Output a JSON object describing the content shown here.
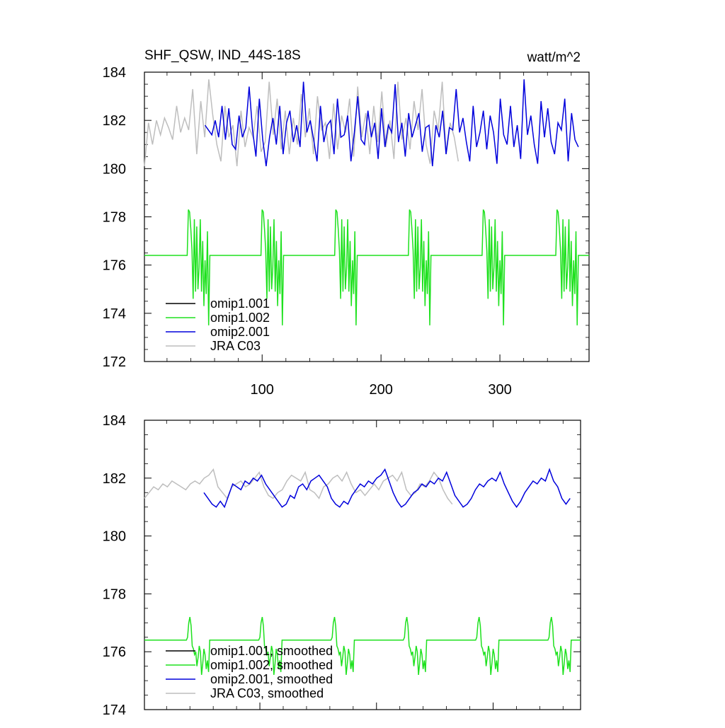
{
  "header": {
    "title": "SHF_QSW, IND_44S-18S",
    "units": "watt/m^2"
  },
  "colors": {
    "omip1_001": "#000000",
    "omip1_002": "#1ee11e",
    "omip2_001": "#0000dc",
    "jra_c03": "#bebebe"
  },
  "chart_data": [
    {
      "type": "line",
      "xlim": [
        1,
        375
      ],
      "ylim": [
        172,
        184
      ],
      "xticks": [
        100,
        200,
        300
      ],
      "yticks": [
        172,
        174,
        176,
        178,
        180,
        182,
        184
      ],
      "legend_position": "lower-left",
      "legend": [
        "omip1.001",
        "omip1.002",
        "omip2.001",
        "JRA C03"
      ],
      "series": [
        {
          "name": "omip1.001",
          "color": "#000000",
          "values": [],
          "note_hidden_by_omip1_002": true
        },
        {
          "name": "omip1.002",
          "color": "#1ee11e",
          "pattern": {
            "period": 62,
            "start": 1,
            "end": 375,
            "baseline": 176.4,
            "active_values": [
              178.3,
              178.2,
              177.5,
              176.6,
              174.6,
              177.9,
              174.9,
              177.6,
              175.0,
              175.9,
              177.9,
              174.9,
              177.0,
              174.3,
              176.2,
              174.8,
              177.4,
              173.5,
              176.4
            ]
          }
        },
        {
          "name": "omip2.001",
          "color": "#0000dc",
          "values": [
            181.8,
            181.6,
            181.4,
            182.0,
            181.3,
            182.6,
            181.2,
            182.5,
            181.0,
            180.8,
            182.2,
            181.3,
            181.7,
            183.4,
            181.6,
            180.5,
            182.9,
            181.2,
            180.1,
            181.3,
            182.1,
            181.0,
            182.6,
            180.6,
            181.9,
            182.4,
            181.1,
            181.8,
            180.9,
            183.6,
            181.5,
            182.0,
            181.2,
            180.3,
            182.6,
            181.1,
            181.8,
            182.0,
            180.6,
            182.9,
            181.3,
            181.4,
            182.2,
            180.3,
            181.5,
            183.0,
            181.2,
            181.0,
            182.4,
            181.3,
            181.9,
            180.4,
            182.5,
            180.9,
            181.8,
            181.5,
            183.5,
            181.1,
            181.9,
            180.5,
            182.3,
            181.3,
            181.8,
            182.3,
            180.7,
            181.7,
            181.8,
            180.1,
            181.8,
            181.3,
            182.4,
            180.6,
            181.7,
            181.6,
            183.3,
            181.5,
            182.1,
            181.1,
            180.3,
            182.6,
            180.9,
            181.5,
            182.4,
            180.8,
            182.2,
            181.5,
            180.2,
            182.9,
            181.4,
            181.0,
            182.6,
            180.9,
            181.8,
            180.4,
            183.7,
            181.4,
            182.2,
            181.0,
            180.2,
            182.8,
            181.3,
            182.5,
            181.1,
            180.6,
            181.9,
            181.6,
            182.9,
            180.3,
            182.3,
            181.2,
            180.9
          ]
        },
        {
          "name": "JRA C03",
          "color": "#bebebe",
          "values": [
            180.1,
            181.9,
            181.0,
            182.0,
            181.4,
            182.1,
            181.7,
            181.2,
            182.6,
            181.5,
            182.1,
            181.6,
            183.3,
            180.6,
            182.8,
            181.3,
            183.7,
            182.2,
            181.0,
            180.3,
            182.6,
            181.3,
            181.8,
            180.1,
            182.4,
            180.9,
            181.7,
            181.3,
            182.6,
            180.7,
            181.1,
            183.6,
            181.4,
            182.9,
            180.8,
            182.4,
            180.6,
            182.1,
            181.0,
            183.1,
            181.3,
            182.5,
            180.6,
            183.0,
            181.6,
            181.9,
            180.4,
            182.7,
            180.8,
            182.2,
            181.5,
            182.9,
            180.5,
            183.4,
            181.3,
            182.3,
            180.6,
            182.6,
            181.1,
            183.2,
            180.9,
            182.0,
            180.4,
            183.6,
            181.2,
            182.1,
            180.8,
            182.8,
            181.6,
            183.3,
            181.0,
            180.2,
            182.4,
            181.6,
            183.6,
            180.6,
            181.9,
            181.3,
            180.3
          ]
        }
      ]
    },
    {
      "type": "line",
      "xlim": [
        1,
        375
      ],
      "ylim": [
        174,
        184
      ],
      "xticks": [
        100,
        200,
        300
      ],
      "yticks": [
        174,
        176,
        178,
        180,
        182,
        184
      ],
      "legend_position": "lower-left",
      "legend": [
        "omip1.001, smoothed",
        "omip1.002, smoothed",
        "omip2.001, smoothed",
        "JRA C03, smoothed"
      ],
      "series": [
        {
          "name": "omip1.001, smoothed",
          "color": "#000000",
          "values": []
        },
        {
          "name": "omip1.002, smoothed",
          "color": "#1ee11e",
          "pattern": {
            "period": 62,
            "start": 1,
            "end": 375,
            "baseline": 176.4,
            "active_values": [
              176.5,
              177.0,
              177.2,
              176.9,
              176.2,
              176.1,
              175.9,
              176.0,
              175.5,
              175.8,
              176.2,
              176.0,
              175.2,
              175.6,
              176.1,
              175.9,
              175.4,
              175.7,
              175.3
            ]
          }
        },
        {
          "name": "omip2.001, smoothed",
          "color": "#0000dc",
          "values": [
            181.5,
            181.3,
            181.1,
            181.0,
            181.2,
            181.0,
            181.4,
            181.8,
            181.7,
            181.6,
            181.9,
            181.8,
            182.0,
            181.9,
            182.1,
            181.8,
            181.6,
            181.4,
            181.2,
            181.0,
            181.1,
            181.4,
            181.3,
            181.7,
            181.8,
            181.6,
            181.9,
            182.0,
            182.1,
            181.9,
            181.7,
            181.3,
            181.1,
            181.0,
            181.2,
            181.1,
            181.4,
            181.6,
            181.8,
            181.7,
            181.9,
            181.8,
            182.0,
            182.1,
            182.3,
            181.9,
            181.5,
            181.2,
            181.0,
            181.1,
            181.3,
            181.5,
            181.6,
            181.8,
            181.7,
            181.9,
            181.8,
            182.0,
            181.9,
            182.2,
            181.8,
            181.4,
            181.2,
            181.0,
            181.1,
            181.3,
            181.6,
            181.8,
            181.7,
            181.9,
            182.0,
            181.9,
            182.2,
            181.8,
            181.5,
            181.2,
            181.0,
            181.2,
            181.5,
            181.7,
            181.9,
            181.8,
            182.0,
            181.9,
            182.3,
            181.9,
            181.7,
            181.3,
            181.1,
            181.3
          ]
        },
        {
          "name": "JRA C03, smoothed",
          "color": "#bebebe",
          "values": [
            181.3,
            181.5,
            181.7,
            181.6,
            181.8,
            181.7,
            181.9,
            181.8,
            181.7,
            181.6,
            181.8,
            181.9,
            181.8,
            182.0,
            182.1,
            182.3,
            181.7,
            181.5,
            181.3,
            181.7,
            181.8,
            181.9,
            181.7,
            181.8,
            182.0,
            182.2,
            181.7,
            181.4,
            181.3,
            181.5,
            181.6,
            181.9,
            182.1,
            182.0,
            181.9,
            182.2,
            181.6,
            181.5,
            181.3,
            181.7,
            181.8,
            182.0,
            182.1,
            181.9,
            182.2,
            181.8,
            181.5,
            181.6,
            181.4,
            181.6,
            181.8,
            181.6,
            181.9,
            182.0,
            182.1,
            181.9,
            182.2,
            181.6,
            181.4,
            181.5,
            181.8,
            181.7,
            181.9,
            182.2,
            182.0,
            181.6,
            181.3,
            181.1
          ]
        }
      ]
    }
  ]
}
